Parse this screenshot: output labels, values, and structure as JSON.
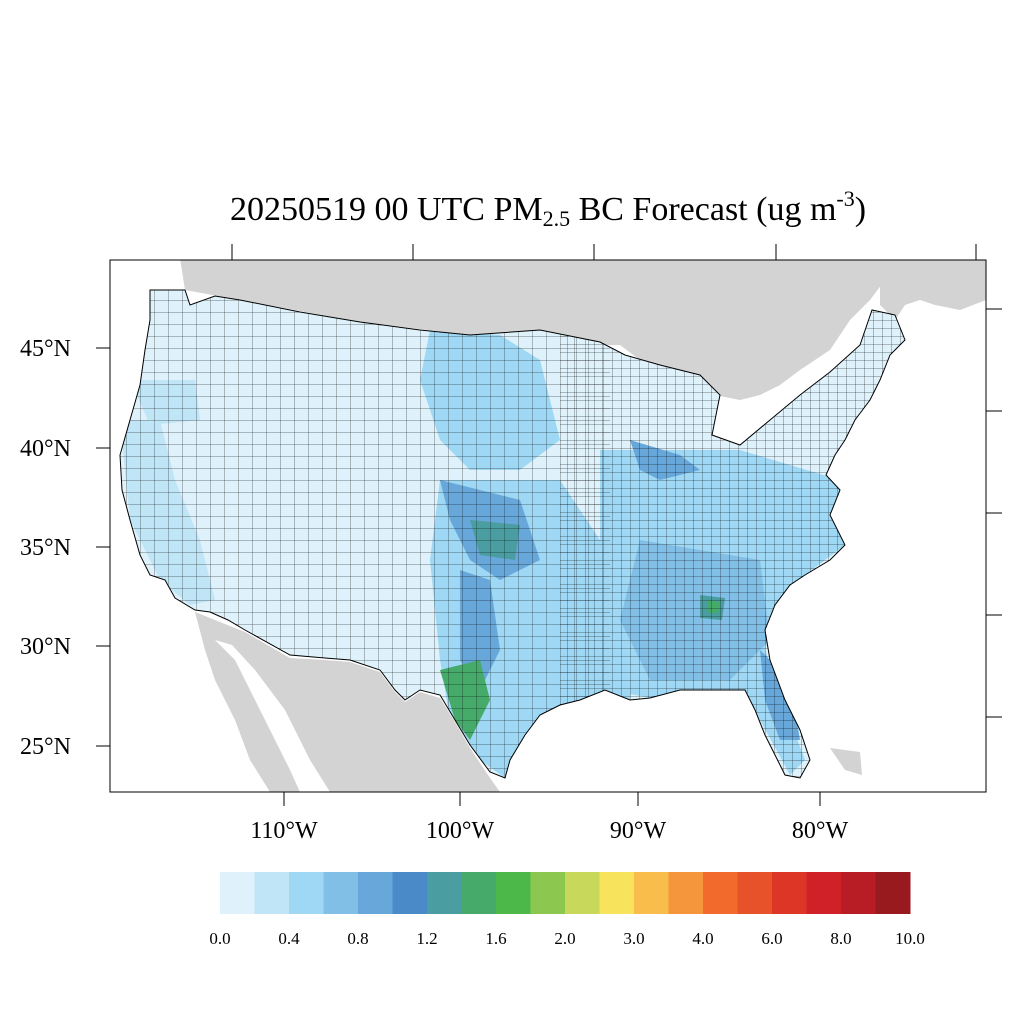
{
  "title": {
    "prefix": "20250519 00 UTC PM",
    "subscript": "2.5",
    "middle": " BC Forecast (ug m",
    "superscript": "-3",
    "suffix": ")"
  },
  "axes": {
    "lat_labels": [
      "45°N",
      "40°N",
      "35°N",
      "30°N",
      "25°N"
    ],
    "lon_labels": [
      "110°W",
      "100°W",
      "90°W",
      "80°W"
    ]
  },
  "colorbar": {
    "colors": [
      "#dff2fb",
      "#bfe5f7",
      "#9fd8f4",
      "#82bfe6",
      "#68a7da",
      "#4b8ac8",
      "#4a9da0",
      "#46aa6a",
      "#4db84a",
      "#8cc84f",
      "#c7d85a",
      "#f7e35c",
      "#f8bd4a",
      "#f6963c",
      "#f26b2c",
      "#e8522a",
      "#dd3626",
      "#d02028",
      "#b81c24",
      "#981a1e"
    ],
    "labels": [
      "0.0",
      "0.4",
      "0.8",
      "1.2",
      "1.6",
      "2.0",
      "3.0",
      "4.0",
      "6.0",
      "8.0",
      "10.0"
    ]
  },
  "map_colors": {
    "land_outside": "#d3d3d3",
    "water": "#ffffff",
    "base_county": "#dff2fb",
    "county_border": "#000000"
  },
  "hotspots": [
    {
      "color": "#bfe5f7",
      "region": "west-coast"
    },
    {
      "color": "#9fd8f4",
      "region": "central-plains"
    },
    {
      "color": "#68a7da",
      "region": "oklahoma"
    },
    {
      "color": "#46aa6a",
      "region": "south-texas"
    },
    {
      "color": "#4a9da0",
      "region": "georgia"
    },
    {
      "color": "#82bfe6",
      "region": "southeast"
    }
  ]
}
